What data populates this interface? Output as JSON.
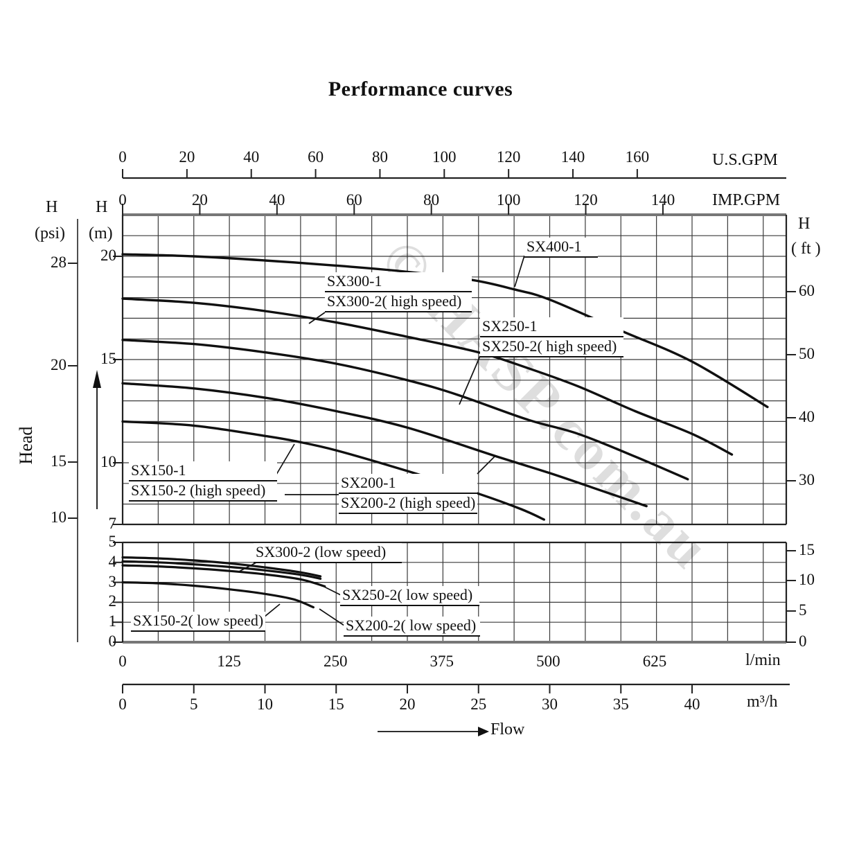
{
  "title": "Performance curves",
  "watermark": "© HASP.com.au",
  "axes": {
    "us_gpm": {
      "label": "U.S.GPM",
      "ticks": [
        "0",
        "20",
        "40",
        "60",
        "80",
        "100",
        "120",
        "140",
        "160"
      ]
    },
    "imp_gpm": {
      "label": "IMP.GPM",
      "ticks": [
        "0",
        "20",
        "40",
        "60",
        "80",
        "100",
        "120",
        "140"
      ]
    },
    "psi": {
      "h": "H",
      "unit": "(psi)",
      "ticks": [
        "28",
        "20",
        "15",
        "10"
      ]
    },
    "m": {
      "h": "H",
      "unit": "(m)",
      "ticks_upper": [
        "20",
        "15",
        "10",
        "7"
      ],
      "ticks_lower": [
        "5",
        "4",
        "3",
        "2",
        "1",
        "0"
      ]
    },
    "ft": {
      "h": "H",
      "unit": "( ft )",
      "ticks_upper": [
        "60",
        "50",
        "40",
        "30"
      ],
      "ticks_lower": [
        "15",
        "10",
        "5",
        "0"
      ]
    },
    "lmin": {
      "label": "l/min",
      "ticks": [
        "0",
        "125",
        "250",
        "375",
        "500",
        "625"
      ]
    },
    "m3h": {
      "label": "m³/h",
      "ticks": [
        "0",
        "5",
        "10",
        "15",
        "20",
        "25",
        "30",
        "35",
        "40"
      ]
    },
    "flow_label": "Flow",
    "head_label": "Head"
  },
  "curve_labels": [
    {
      "id": "sx400",
      "rows": [
        "SX400-1"
      ]
    },
    {
      "id": "sx300",
      "rows": [
        "SX300-1",
        "SX300-2( high speed)"
      ]
    },
    {
      "id": "sx250",
      "rows": [
        "SX250-1",
        "SX250-2( high speed)"
      ]
    },
    {
      "id": "sx200",
      "rows": [
        "SX200-1",
        "SX200-2 (high speed)"
      ]
    },
    {
      "id": "sx150",
      "rows": [
        "SX150-1",
        "SX150-2 (high speed)"
      ]
    },
    {
      "id": "sx300low",
      "rows": [
        "SX300-2 (low speed)"
      ]
    },
    {
      "id": "sx250low",
      "rows": [
        "SX250-2( low speed)"
      ]
    },
    {
      "id": "sx200low",
      "rows": [
        "SX200-2( low speed)"
      ]
    },
    {
      "id": "sx150low",
      "rows": [
        "SX150-2( low speed)"
      ]
    }
  ],
  "chart_data": {
    "type": "line",
    "title": "Performance curves",
    "xlabel": "Flow",
    "ylabel": "Head",
    "x_axes": [
      {
        "unit": "U.S.GPM",
        "ticks": [
          0,
          20,
          40,
          60,
          80,
          100,
          120,
          140,
          160
        ]
      },
      {
        "unit": "IMP.GPM",
        "ticks": [
          0,
          20,
          40,
          60,
          80,
          100,
          120,
          140
        ]
      },
      {
        "unit": "l/min",
        "ticks": [
          0,
          125,
          250,
          375,
          500,
          625
        ]
      },
      {
        "unit": "m³/h",
        "ticks": [
          0,
          5,
          10,
          15,
          20,
          25,
          30,
          35,
          40
        ]
      }
    ],
    "y_axes": [
      {
        "unit": "psi",
        "ticks": [
          28,
          20,
          15,
          10
        ]
      },
      {
        "unit": "m",
        "ticks_upper_panel": [
          20,
          15,
          10,
          7
        ],
        "ticks_lower_panel": [
          5,
          4,
          3,
          2,
          1,
          0
        ],
        "upper_panel_range": [
          7,
          22
        ],
        "lower_panel_range": [
          0,
          5
        ]
      },
      {
        "unit": "ft",
        "ticks_upper_panel": [
          60,
          50,
          40,
          30
        ],
        "ticks_lower_panel": [
          15,
          10,
          5,
          0
        ]
      }
    ],
    "grid": "on",
    "x_grid_step_m3h": 2.5,
    "y_grid_step_m": 1,
    "series_high_speed": [
      {
        "name": "SX400-1",
        "points_m3h_m": [
          [
            0,
            20.1
          ],
          [
            5,
            20.0
          ],
          [
            10,
            19.8
          ],
          [
            15,
            19.55
          ],
          [
            20,
            19.25
          ],
          [
            24.6,
            18.85
          ],
          [
            27.5,
            18.4
          ],
          [
            30,
            17.9
          ],
          [
            35,
            16.4
          ],
          [
            40,
            14.9
          ],
          [
            45.3,
            12.7
          ]
        ]
      },
      {
        "name": "SX300-1 / SX300-2 high speed",
        "points_m3h_m": [
          [
            0,
            17.95
          ],
          [
            5,
            17.75
          ],
          [
            10,
            17.35
          ],
          [
            15,
            16.8
          ],
          [
            20,
            16.1
          ],
          [
            25,
            15.35
          ],
          [
            28.4,
            14.6
          ],
          [
            32,
            13.7
          ],
          [
            36,
            12.5
          ],
          [
            40,
            11.4
          ],
          [
            42.8,
            10.4
          ]
        ]
      },
      {
        "name": "SX250-1 / SX250-2 high speed",
        "points_m3h_m": [
          [
            0,
            15.95
          ],
          [
            5,
            15.75
          ],
          [
            10,
            15.35
          ],
          [
            15,
            14.8
          ],
          [
            20,
            14.0
          ],
          [
            23.5,
            13.3
          ],
          [
            28.4,
            12.1
          ],
          [
            32,
            11.4
          ],
          [
            36,
            10.3
          ],
          [
            39.7,
            9.2
          ]
        ]
      },
      {
        "name": "SX200-1 / SX200-2 high speed",
        "points_m3h_m": [
          [
            0,
            13.85
          ],
          [
            5,
            13.6
          ],
          [
            10,
            13.15
          ],
          [
            15,
            12.5
          ],
          [
            20,
            11.7
          ],
          [
            26.3,
            10.3
          ],
          [
            30,
            9.5
          ],
          [
            33,
            8.8
          ],
          [
            36.8,
            7.9
          ]
        ]
      },
      {
        "name": "SX150-1 / SX150-2 high speed",
        "points_m3h_m": [
          [
            0,
            12.0
          ],
          [
            5,
            11.8
          ],
          [
            10,
            11.3
          ],
          [
            12.1,
            11.05
          ],
          [
            15,
            10.6
          ],
          [
            20,
            9.6
          ],
          [
            25,
            8.5
          ],
          [
            28,
            7.75
          ],
          [
            29.6,
            7.25
          ]
        ]
      }
    ],
    "series_low_speed": [
      {
        "name": "SX300-2 low speed",
        "points_m3h_m": [
          [
            0,
            4.25
          ],
          [
            2.5,
            4.2
          ],
          [
            5,
            4.1
          ],
          [
            7.5,
            3.95
          ],
          [
            10,
            3.75
          ],
          [
            12.5,
            3.5
          ],
          [
            13.9,
            3.3
          ]
        ]
      },
      {
        "name": "SX250-2 low speed",
        "points_m3h_m": [
          [
            0,
            4.05
          ],
          [
            2.5,
            4.0
          ],
          [
            5,
            3.9
          ],
          [
            7.5,
            3.77
          ],
          [
            10,
            3.6
          ],
          [
            12.5,
            3.38
          ],
          [
            13.9,
            3.18
          ]
        ]
      },
      {
        "name": "SX200-2 low speed",
        "points_m3h_m": [
          [
            0,
            3.85
          ],
          [
            2.5,
            3.8
          ],
          [
            5,
            3.7
          ],
          [
            7.5,
            3.57
          ],
          [
            10,
            3.4
          ],
          [
            12.5,
            3.15
          ],
          [
            14.2,
            2.8
          ]
        ]
      },
      {
        "name": "SX150-2 low speed",
        "points_m3h_m": [
          [
            0,
            3.0
          ],
          [
            2.5,
            2.95
          ],
          [
            5,
            2.83
          ],
          [
            7.5,
            2.65
          ],
          [
            10,
            2.42
          ],
          [
            12,
            2.15
          ],
          [
            13.4,
            1.75
          ]
        ]
      }
    ]
  }
}
